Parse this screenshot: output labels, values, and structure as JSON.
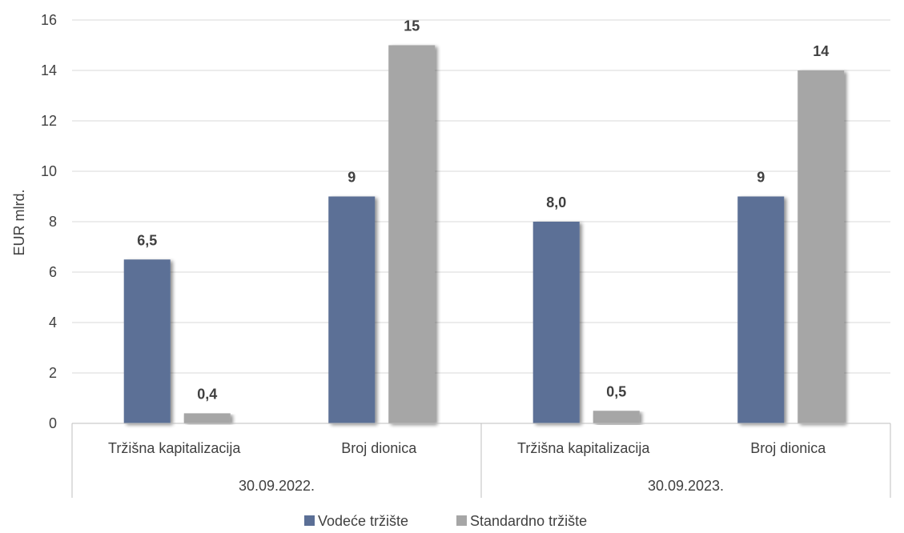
{
  "chart_data": {
    "type": "bar",
    "ylabel": "EUR mlrd.",
    "ylim": [
      0,
      16
    ],
    "yticks": [
      0,
      2,
      4,
      6,
      8,
      10,
      12,
      14,
      16
    ],
    "grid": true,
    "legend_position": "bottom",
    "groups": [
      {
        "label": "30.09.2022.",
        "categories": [
          "Tržišna kapitalizacija",
          "Broj dionica"
        ]
      },
      {
        "label": "30.09.2023.",
        "categories": [
          "Tržišna kapitalizacija",
          "Broj dionica"
        ]
      }
    ],
    "series": [
      {
        "name": "Vodeće tržište",
        "color": "#5b6f96",
        "values": [
          6.5,
          9,
          8.0,
          9
        ],
        "labels": [
          "6,5",
          "9",
          "8,0",
          "9"
        ]
      },
      {
        "name": "Standardno tržište",
        "color": "#a6a6a6",
        "values": [
          0.4,
          15,
          0.5,
          14
        ],
        "labels": [
          "0,4",
          "15",
          "0,5",
          "14"
        ]
      }
    ]
  }
}
